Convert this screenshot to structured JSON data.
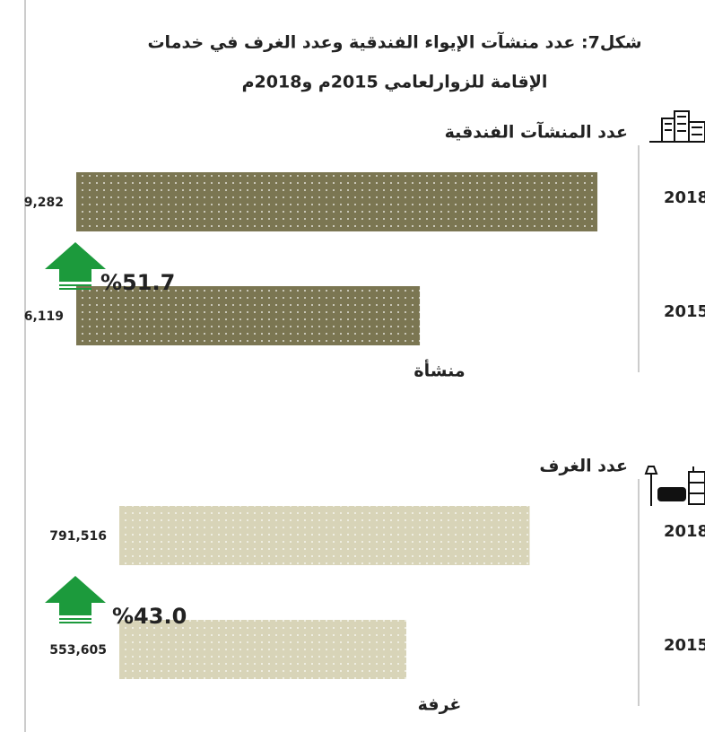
{
  "title_lines": [
    "شكل7: عدد منشآت الإيواء الفندقية وعدد الغرف في خدمات",
    "الإقامة للزوارلعامي 2015م و2018م"
  ],
  "chart_data": [
    {
      "type": "bar",
      "orientation": "horizontal",
      "title": "عدد المنشآت الفندقية",
      "categories": [
        "2018",
        "2015"
      ],
      "values": [
        9282,
        6119
      ],
      "value_labels": [
        "9,282",
        "6,119"
      ],
      "unit_label": "منشأة",
      "annotation": "%51.7",
      "color": "#7b7652",
      "xlim": [
        0,
        10000
      ]
    },
    {
      "type": "bar",
      "orientation": "horizontal",
      "title": "عدد الغرف",
      "categories": [
        "2018",
        "2015"
      ],
      "values": [
        791516,
        553605
      ],
      "value_labels": [
        "791,516",
        "553,605"
      ],
      "unit_label": "غرفة",
      "annotation": "%43.0",
      "color": "#d8d4b8",
      "xlim": [
        0,
        1000000
      ]
    }
  ]
}
